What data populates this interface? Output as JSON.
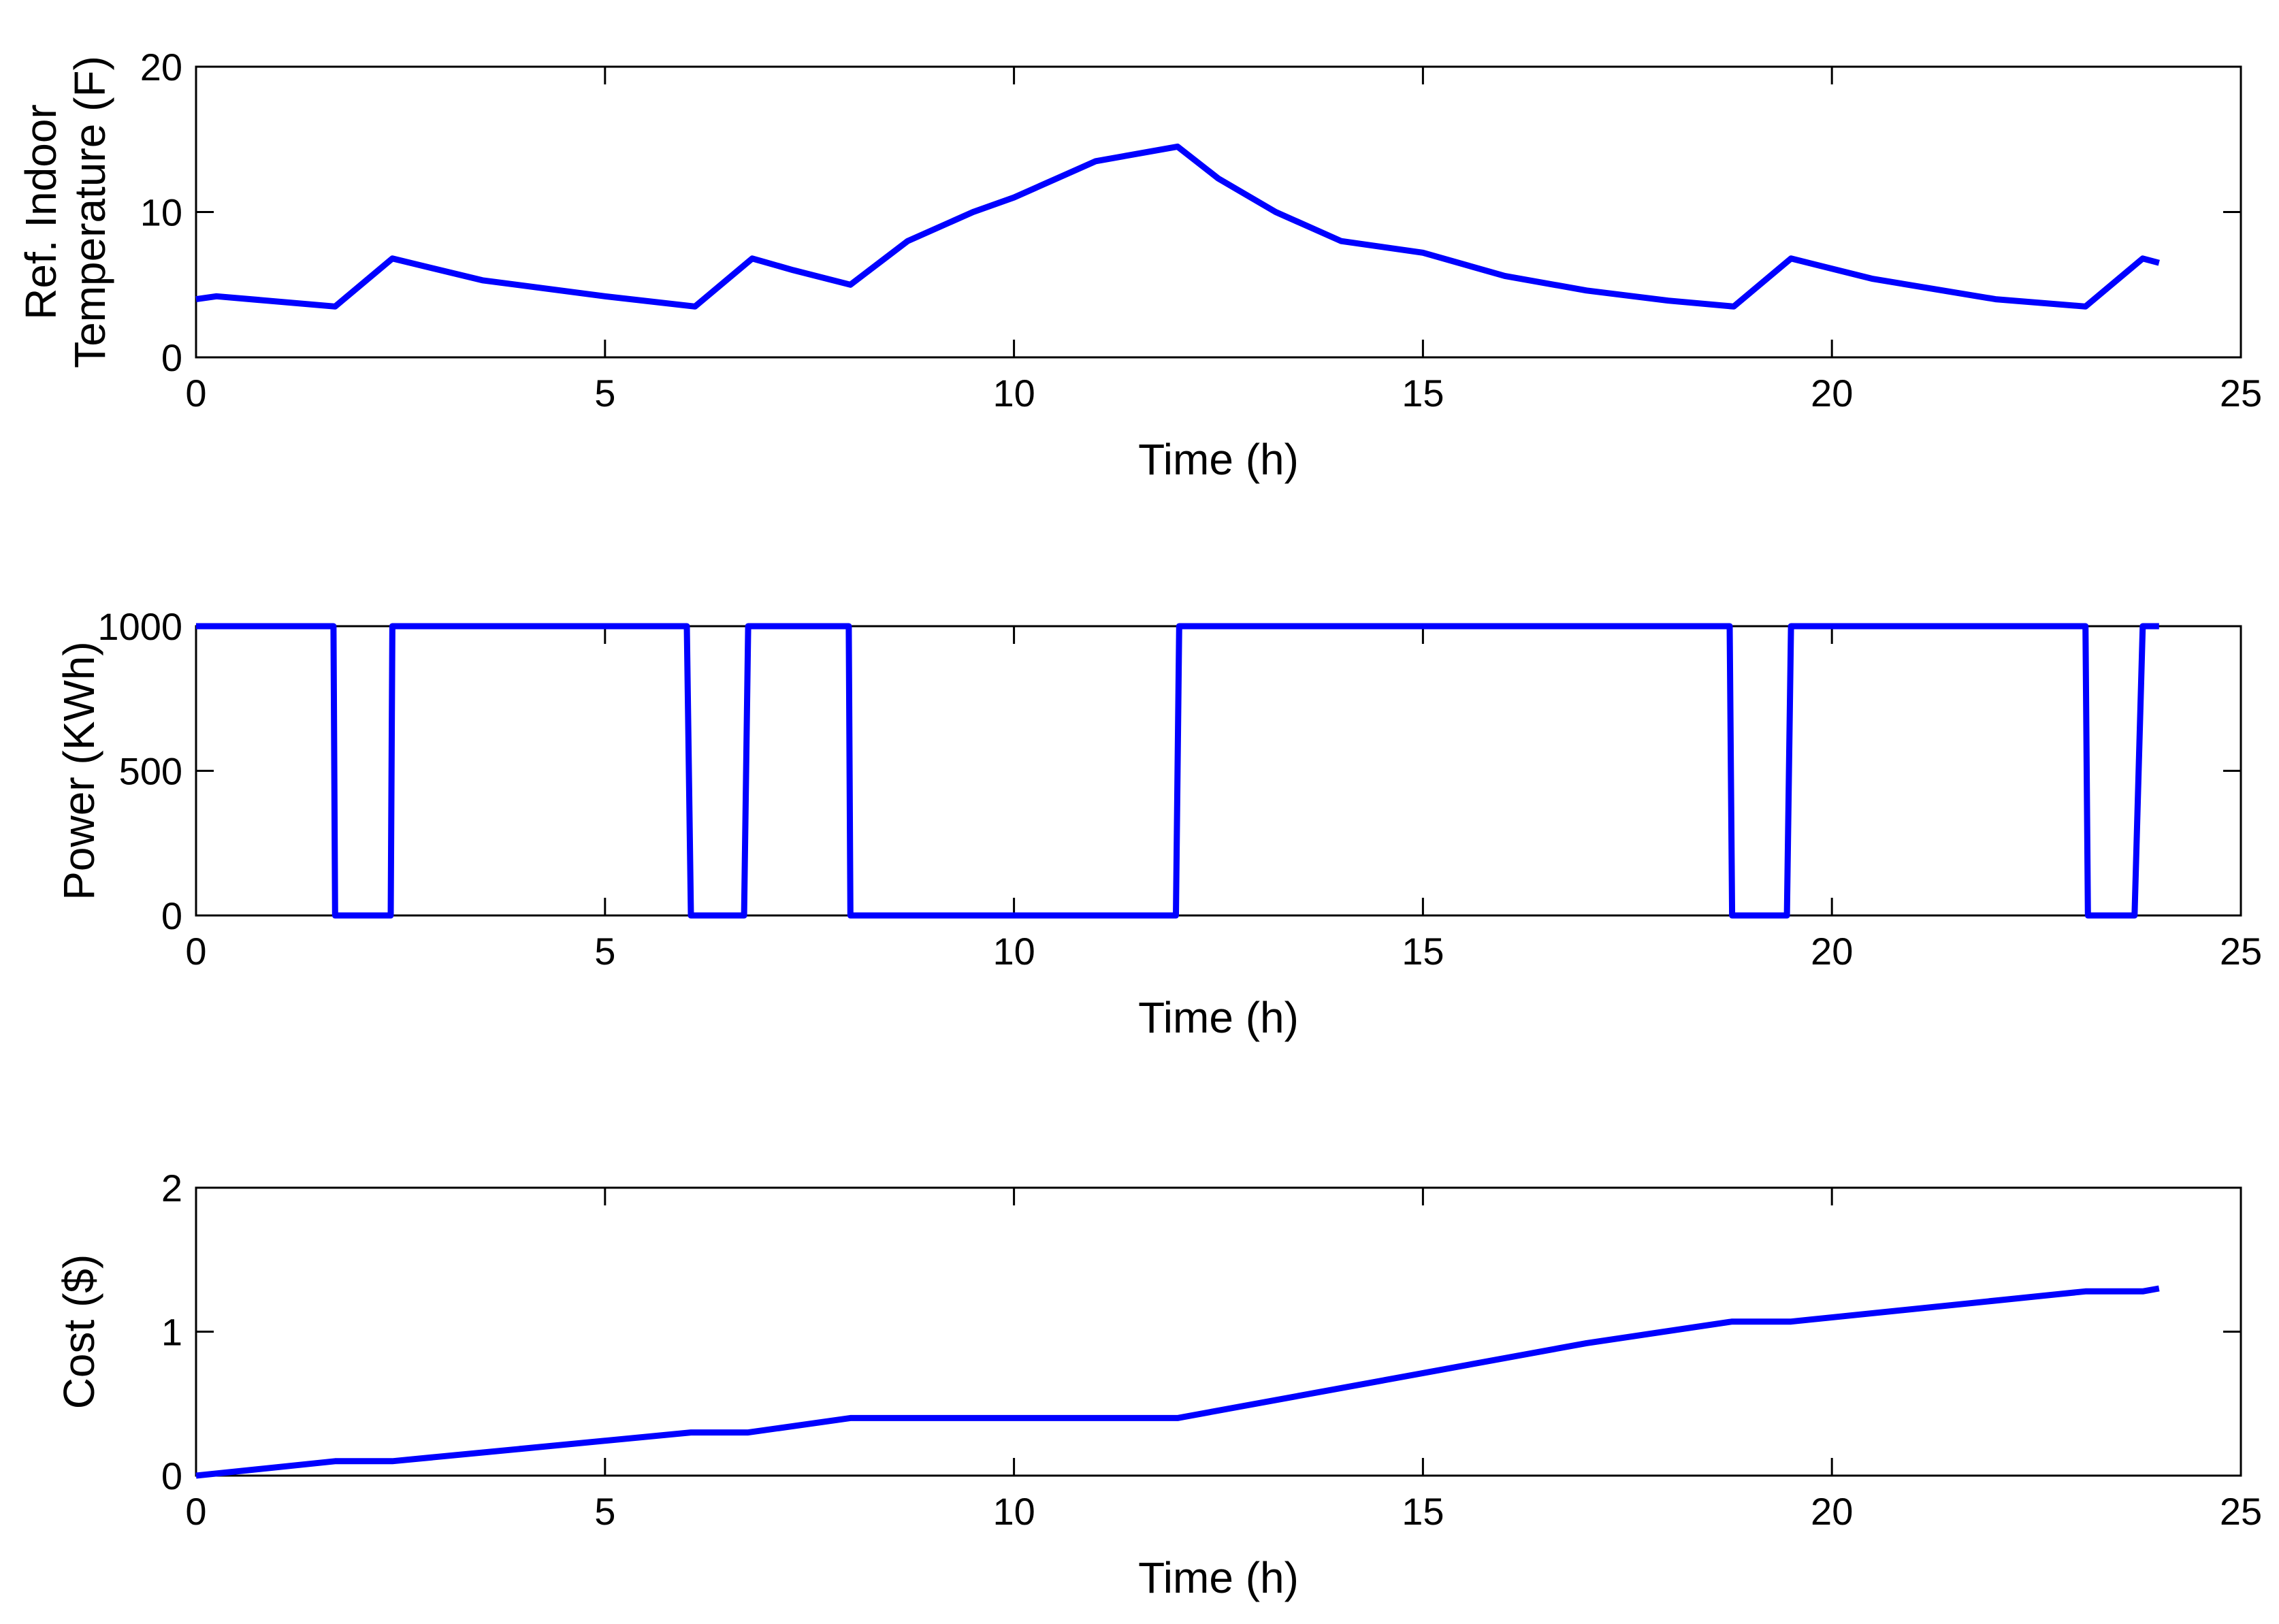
{
  "style": {
    "line_color": "#0000ff",
    "axis_color": "#000000",
    "background": "#ffffff"
  },
  "chart_data": [
    {
      "type": "line",
      "xlabel": "Time (h)",
      "ylabel": [
        "Ref. Indoor",
        "Temperature (F)"
      ],
      "xlim": [
        0,
        25
      ],
      "ylim": [
        0,
        20
      ],
      "xticks": [
        0,
        5,
        10,
        15,
        20,
        25
      ],
      "yticks": [
        0,
        10,
        20
      ],
      "grid": false,
      "series": [
        {
          "x": [
            0,
            0.25,
            1.7,
            2.4,
            3.5,
            5,
            6.1,
            6.8,
            7.3,
            8,
            8.7,
            9.5,
            10,
            11,
            12,
            12.5,
            13.2,
            14,
            15,
            16,
            17,
            18,
            18.8,
            19.5,
            20.5,
            22,
            23.1,
            23.8,
            24
          ],
          "y": [
            4.0,
            4.2,
            3.5,
            6.8,
            5.3,
            4.2,
            3.5,
            6.8,
            6.0,
            5.0,
            8.0,
            10.0,
            11.0,
            13.5,
            14.5,
            12.3,
            10.0,
            8.0,
            7.2,
            5.6,
            4.6,
            3.9,
            3.5,
            6.8,
            5.4,
            4.0,
            3.5,
            6.8,
            6.5
          ]
        }
      ]
    },
    {
      "type": "line",
      "xlabel": "Time (h)",
      "ylabel": [
        "Power (KWh)"
      ],
      "xlim": [
        0,
        25
      ],
      "ylim": [
        0,
        1000
      ],
      "xticks": [
        0,
        5,
        10,
        15,
        20,
        25
      ],
      "yticks": [
        0,
        500,
        1000
      ],
      "grid": false,
      "series": [
        {
          "x": [
            0,
            1.68,
            1.7,
            2.38,
            2.4,
            6.0,
            6.05,
            6.7,
            6.75,
            7.98,
            8.0,
            11.98,
            12.02,
            18.75,
            18.78,
            19.45,
            19.5,
            23.1,
            23.13,
            23.7,
            23.8,
            24
          ],
          "y": [
            1000,
            1000,
            0,
            0,
            1000,
            1000,
            0,
            0,
            1000,
            1000,
            0,
            0,
            1000,
            1000,
            0,
            0,
            1000,
            1000,
            0,
            0,
            1000,
            1000
          ]
        }
      ]
    },
    {
      "type": "line",
      "xlabel": "Time (h)",
      "ylabel": [
        "Cost ($)"
      ],
      "xlim": [
        0,
        25
      ],
      "ylim": [
        0,
        2
      ],
      "xticks": [
        0,
        5,
        10,
        15,
        20,
        25
      ],
      "yticks": [
        0,
        1,
        2
      ],
      "grid": false,
      "series": [
        {
          "x": [
            0,
            1.7,
            2.4,
            6.05,
            6.75,
            8.0,
            12.0,
            17.0,
            18.78,
            19.5,
            23.1,
            23.8,
            24
          ],
          "y": [
            0,
            0.1,
            0.1,
            0.3,
            0.3,
            0.4,
            0.4,
            0.92,
            1.07,
            1.07,
            1.28,
            1.28,
            1.3
          ]
        }
      ]
    }
  ]
}
